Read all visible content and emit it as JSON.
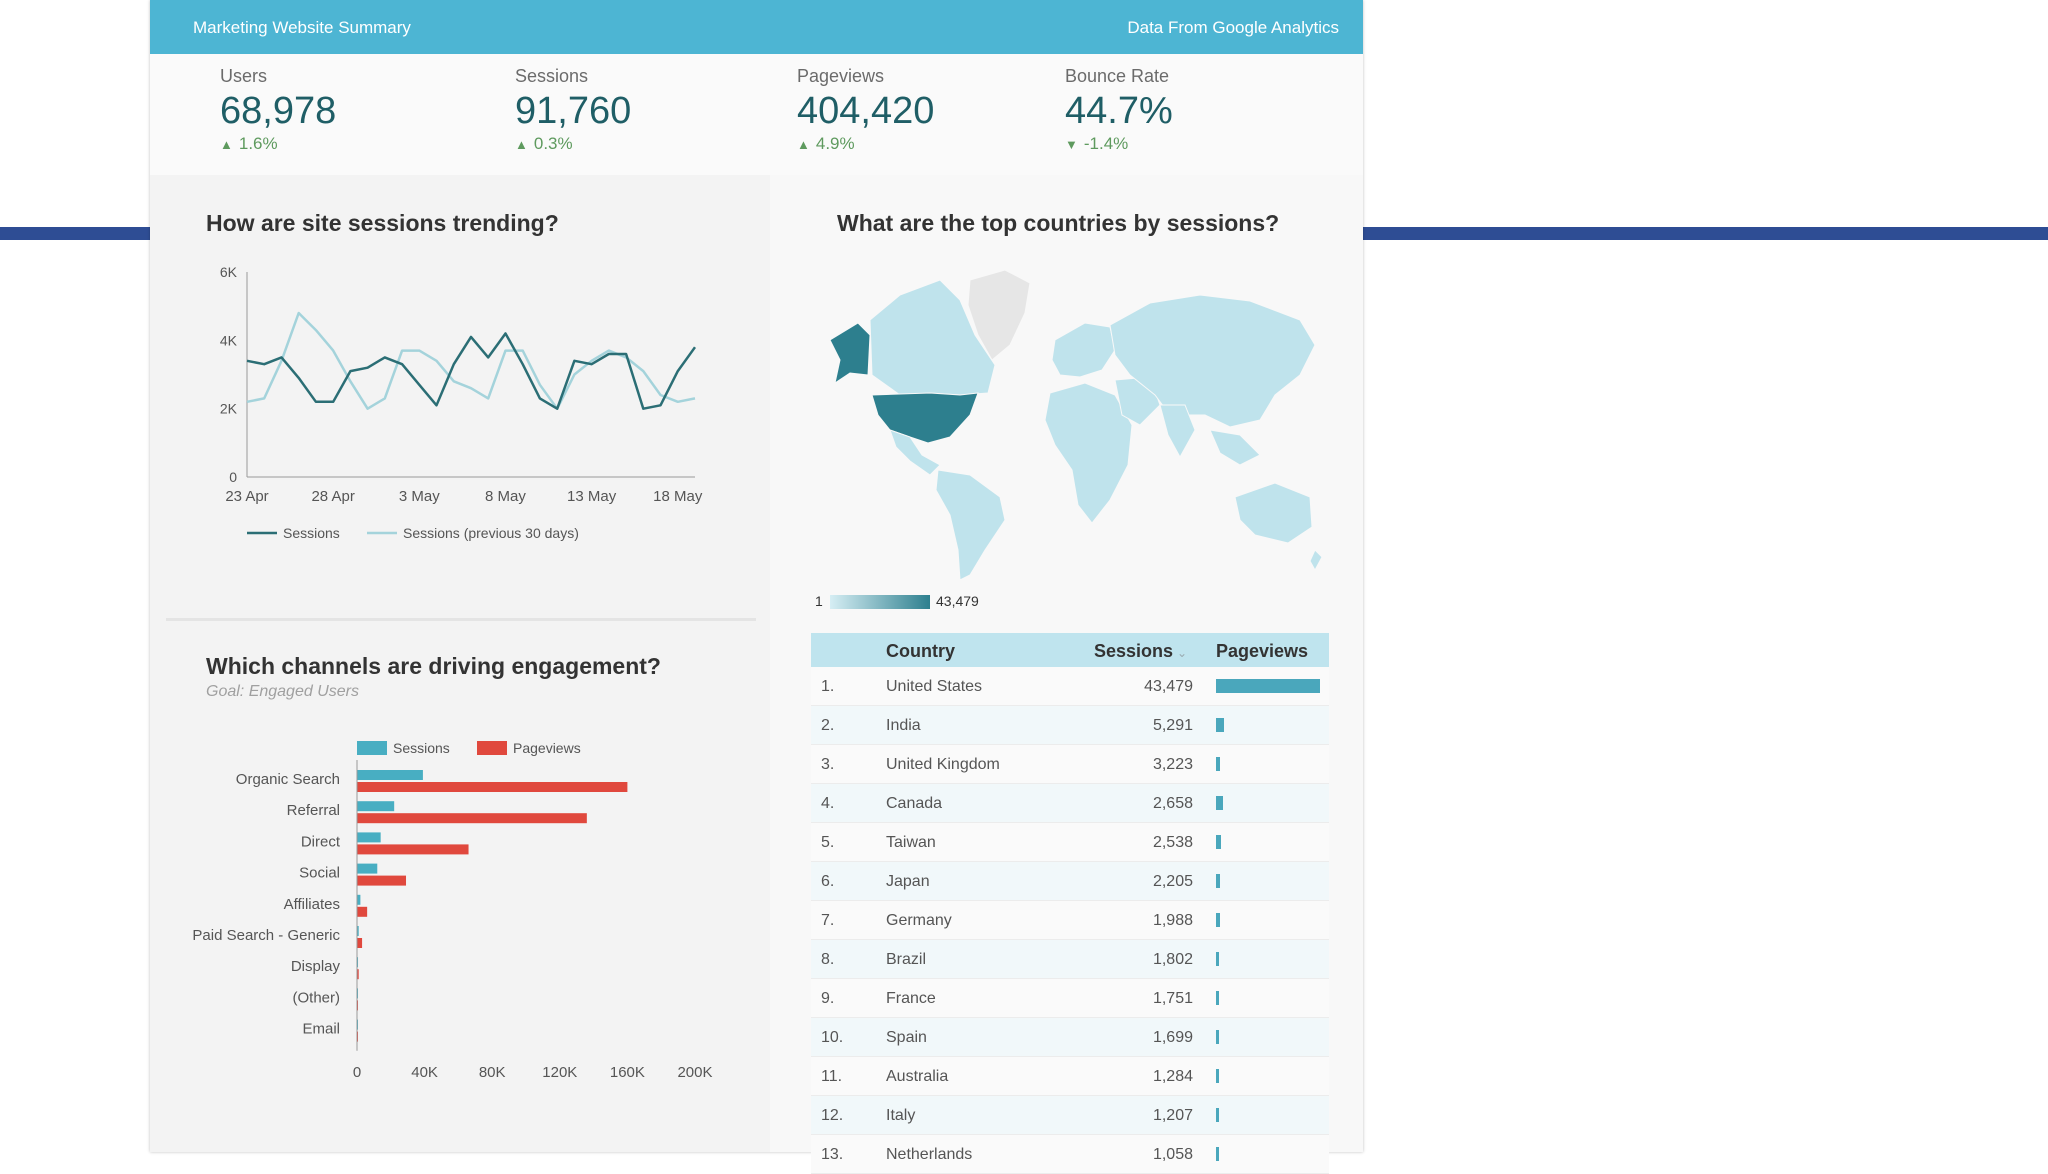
{
  "header": {
    "title": "Marketing Website Summary",
    "source": "Data From Google Analytics"
  },
  "kpis": [
    {
      "label": "Users",
      "value": "68,978",
      "change": "1.6%",
      "direction": "up"
    },
    {
      "label": "Sessions",
      "value": "91,760",
      "change": "0.3%",
      "direction": "up"
    },
    {
      "label": "Pageviews",
      "value": "404,420",
      "change": "4.9%",
      "direction": "up"
    },
    {
      "label": "Bounce Rate",
      "value": "44.7%",
      "change": "-1.4%",
      "direction": "down"
    }
  ],
  "sections": {
    "trend_title": "How are site sessions trending?",
    "map_title": "What are the top countries by sessions?",
    "channels_title": "Which channels are driving engagement?",
    "channels_goal": "Goal: Engaged Users"
  },
  "map": {
    "legend_min": "1",
    "legend_max": "43,479",
    "color_low": "#d6eef4",
    "color_high": "#2d7f8e"
  },
  "colors": {
    "sessions": "#2b6e75",
    "sessions_prev": "#a4d3db",
    "bar_sessions": "#48aec2",
    "bar_pageviews": "#e0483d",
    "header": "#4db5d3"
  },
  "table": {
    "headers": {
      "country": "Country",
      "sessions": "Sessions",
      "pageviews": "Pageviews"
    },
    "sort_indicator": "⌄",
    "rows": [
      {
        "idx": "1.",
        "country": "United States",
        "sessions": "43,479",
        "pageviews_share": 1.0
      },
      {
        "idx": "2.",
        "country": "India",
        "sessions": "5,291",
        "pageviews_share": 0.08
      },
      {
        "idx": "3.",
        "country": "United Kingdom",
        "sessions": "3,223",
        "pageviews_share": 0.035
      },
      {
        "idx": "4.",
        "country": "Canada",
        "sessions": "2,658",
        "pageviews_share": 0.07
      },
      {
        "idx": "5.",
        "country": "Taiwan",
        "sessions": "2,538",
        "pageviews_share": 0.05
      },
      {
        "idx": "6.",
        "country": "Japan",
        "sessions": "2,205",
        "pageviews_share": 0.035
      },
      {
        "idx": "7.",
        "country": "Germany",
        "sessions": "1,988",
        "pageviews_share": 0.035
      },
      {
        "idx": "8.",
        "country": "Brazil",
        "sessions": "1,802",
        "pageviews_share": 0.025
      },
      {
        "idx": "9.",
        "country": "France",
        "sessions": "1,751",
        "pageviews_share": 0.025
      },
      {
        "idx": "10.",
        "country": "Spain",
        "sessions": "1,699",
        "pageviews_share": 0.025
      },
      {
        "idx": "11.",
        "country": "Australia",
        "sessions": "1,284",
        "pageviews_share": 0.025
      },
      {
        "idx": "12.",
        "country": "Italy",
        "sessions": "1,207",
        "pageviews_share": 0.025
      },
      {
        "idx": "13.",
        "country": "Netherlands",
        "sessions": "1,058",
        "pageviews_share": 0.025
      }
    ]
  },
  "chart_data": [
    {
      "type": "line",
      "x_ticks": [
        "23 Apr",
        "28 Apr",
        "3 May",
        "8 May",
        "13 May",
        "18 May"
      ],
      "y_ticks": [
        "0",
        "2K",
        "4K",
        "6K"
      ],
      "ylim": [
        0,
        6000
      ],
      "series": [
        {
          "name": "Sessions",
          "values": [
            3400,
            3300,
            3500,
            2900,
            2200,
            2200,
            3100,
            3200,
            3500,
            3300,
            2700,
            2100,
            3300,
            4100,
            3500,
            4200,
            3300,
            2300,
            2000,
            3400,
            3300,
            3600,
            3600,
            2000,
            2100,
            3100,
            3800
          ]
        },
        {
          "name": "Sessions (previous 30 days)",
          "values": [
            2200,
            2300,
            3400,
            4800,
            4300,
            3700,
            2800,
            2000,
            2300,
            3700,
            3700,
            3400,
            2800,
            2600,
            2300,
            3700,
            3700,
            2700,
            2000,
            3000,
            3400,
            3700,
            3500,
            3100,
            2400,
            2200,
            2300
          ]
        }
      ]
    },
    {
      "type": "bar",
      "orientation": "horizontal",
      "categories": [
        "Organic Search",
        "Referral",
        "Direct",
        "Social",
        "Affiliates",
        "Paid Search - Generic",
        "Display",
        "(Other)",
        "Email"
      ],
      "series": [
        {
          "name": "Sessions",
          "values": [
            39000,
            22000,
            14000,
            12000,
            2000,
            1000,
            600,
            300,
            200
          ]
        },
        {
          "name": "Pageviews",
          "values": [
            160000,
            136000,
            66000,
            29000,
            6000,
            3000,
            1000,
            500,
            300
          ]
        }
      ],
      "x_ticks": [
        "0",
        "40K",
        "80K",
        "120K",
        "160K",
        "200K"
      ],
      "xlim": [
        0,
        200000
      ]
    }
  ]
}
